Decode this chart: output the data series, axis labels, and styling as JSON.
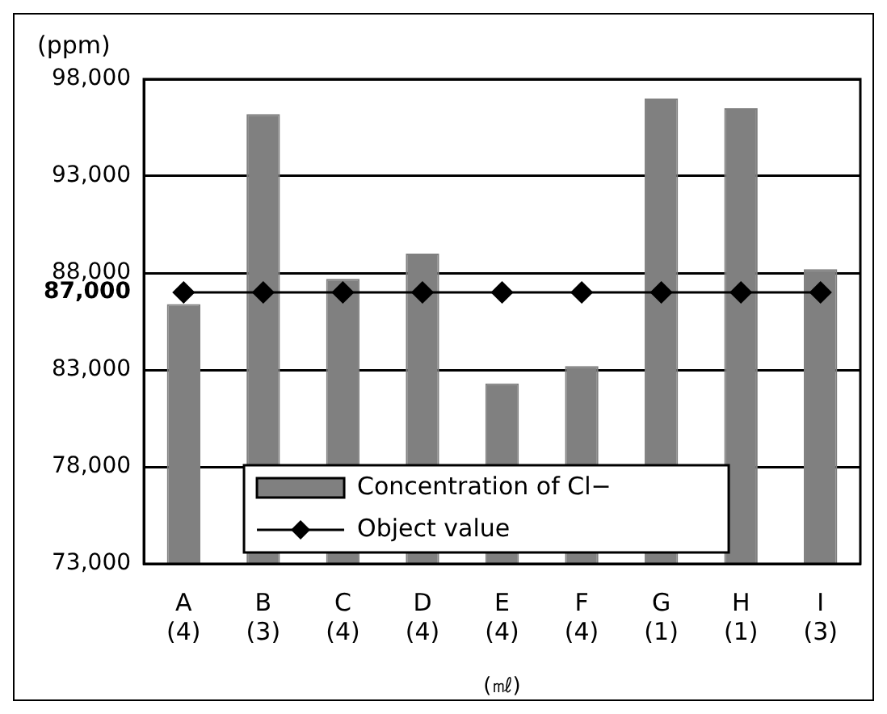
{
  "chart_data": {
    "type": "bar",
    "categories": [
      "A\n(4)",
      "B\n(3)",
      "C\n(4)",
      "D\n(4)",
      "E\n(4)",
      "F\n(4)",
      "G\n(1)",
      "H\n(1)",
      "I\n(3)"
    ],
    "series": [
      {
        "name": "Concentration of Cl−",
        "color": "#808080",
        "values": [
          86400,
          96200,
          87700,
          89000,
          82300,
          83200,
          97000,
          96500,
          88200
        ]
      },
      {
        "name": "Object value",
        "type": "line",
        "color": "#000000",
        "values": [
          87000,
          87000,
          87000,
          87000,
          87000,
          87000,
          87000,
          87000,
          87000
        ]
      }
    ],
    "ylabel": "(ppm)",
    "xlabel": "(㎖)",
    "ylim": [
      73000,
      98000
    ],
    "yticks": [
      {
        "value": 73000,
        "label": "73,000"
      },
      {
        "value": 78000,
        "label": "78,000"
      },
      {
        "value": 83000,
        "label": "83,000"
      },
      {
        "value": 87000,
        "label": "87,000"
      },
      {
        "value": 88000,
        "label": "88,000"
      },
      {
        "value": 93000,
        "label": "93,000"
      },
      {
        "value": 98000,
        "label": "98,000"
      }
    ],
    "grid": "y",
    "legend": "bottom",
    "marker": "diamond"
  }
}
